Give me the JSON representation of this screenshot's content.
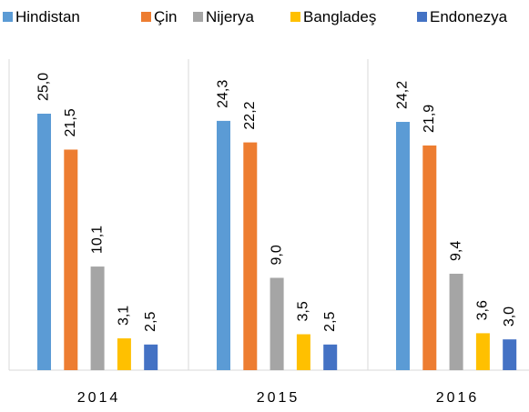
{
  "chart_data": {
    "type": "bar",
    "categories": [
      "2014",
      "2015",
      "2016"
    ],
    "series": [
      {
        "name": "Hindistan",
        "color": "#5b9bd5",
        "values": [
          25.0,
          24.3,
          24.2
        ],
        "value_labels": [
          "25,0",
          "24,3",
          "24,2"
        ]
      },
      {
        "name": "Çin",
        "color": "#ed7d31",
        "values": [
          21.5,
          22.2,
          21.9
        ],
        "value_labels": [
          "21,5",
          "22,2",
          "21,9"
        ]
      },
      {
        "name": "Nijerya",
        "color": "#a5a5a5",
        "values": [
          10.1,
          9.0,
          9.4
        ],
        "value_labels": [
          "10,1",
          "9,0",
          "9,4"
        ]
      },
      {
        "name": "Bangladeş",
        "color": "#ffc000",
        "values": [
          3.1,
          3.5,
          3.6
        ],
        "value_labels": [
          "3,1",
          "3,5",
          "3,6"
        ]
      },
      {
        "name": "Endonezya",
        "color": "#4472c4",
        "values": [
          2.5,
          2.5,
          3.0
        ],
        "value_labels": [
          "2,5",
          "2,5",
          "3,0"
        ]
      }
    ],
    "legend": "top"
  }
}
